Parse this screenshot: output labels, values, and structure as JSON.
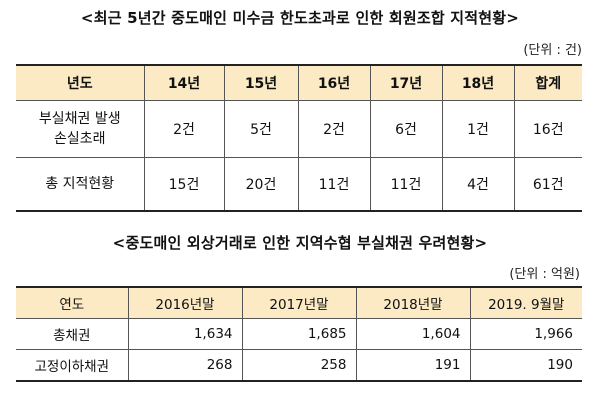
{
  "table1": {
    "title": "<최근 5년간 중도매인 미수금 한도초과로 인한 회원조합 지적현황>",
    "unit": "(단위 : 건)",
    "headers": [
      "년도",
      "14년",
      "15년",
      "16년",
      "17년",
      "18년",
      "합계"
    ],
    "rows": [
      {
        "label_line1": "부실채권 발생",
        "label_line2": "손실초래",
        "cells": [
          "2건",
          "5건",
          "2건",
          "6건",
          "1건",
          "16건"
        ]
      },
      {
        "label_line1": "총 지적현황",
        "cells": [
          "15건",
          "20건",
          "11건",
          "11건",
          "4건",
          "61건"
        ]
      }
    ]
  },
  "table2": {
    "title": "<중도매인 외상거래로 인한 지역수협 부실채권 우려현황>",
    "unit": "(단위 : 억원)",
    "headers": [
      "연도",
      "2016년말",
      "2017년말",
      "2018년말",
      "2019. 9월말"
    ],
    "rows": [
      {
        "label": "총채권",
        "cells": [
          "1,634",
          "1,685",
          "1,604",
          "1,966"
        ]
      },
      {
        "label": "고정이하채권",
        "cells": [
          "268",
          "258",
          "191",
          "190"
        ]
      }
    ]
  }
}
